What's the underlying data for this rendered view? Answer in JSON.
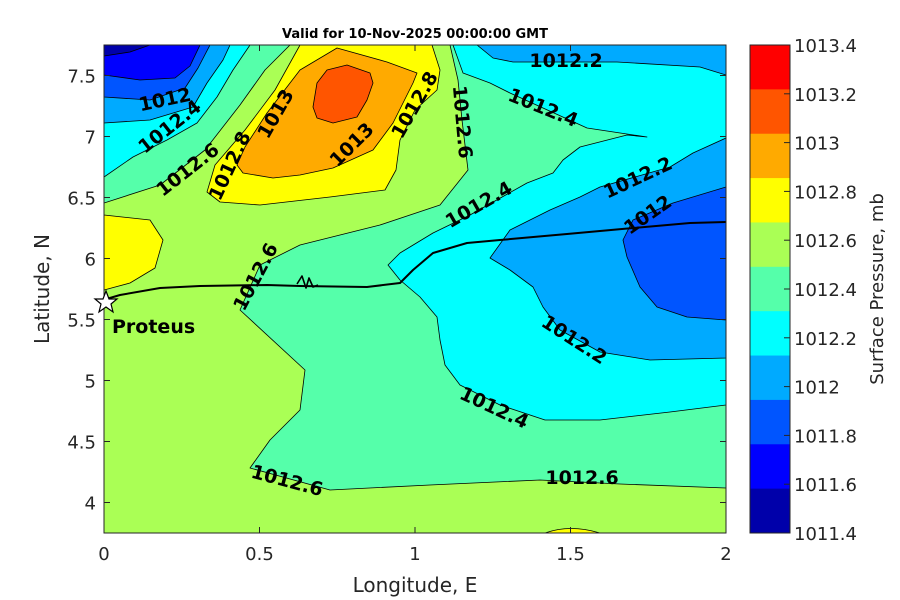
{
  "chart_data": {
    "type": "contour",
    "title": "Valid for 10-Nov-2025 00:00:00 GMT",
    "xlabel": "Longitude, E",
    "ylabel": "Latitude, N",
    "xlim": [
      0,
      2
    ],
    "ylim": [
      3.75,
      7.75
    ],
    "xticks": [
      "0",
      "0.5",
      "1",
      "1.5",
      "2"
    ],
    "xtick_values": [
      0,
      0.5,
      1,
      1.5,
      2
    ],
    "yticks": [
      "4",
      "4.5",
      "5",
      "5.5",
      "6",
      "6.5",
      "7",
      "7.5"
    ],
    "ytick_values": [
      4,
      4.5,
      5,
      5.5,
      6,
      6.5,
      7,
      7.5
    ],
    "colorbar": {
      "label": "Surface Pressure, mb",
      "range": [
        1011.4,
        1013.4
      ],
      "ticks": [
        "1013.4",
        "1013.2",
        "1013",
        "1012.8",
        "1012.6",
        "1012.4",
        "1012.2",
        "1012",
        "1011.8",
        "1011.6",
        "1011.4"
      ],
      "colors_top_to_bottom": [
        "#ff0000",
        "#ff5500",
        "#ffaa00",
        "#ffff00",
        "#aaff55",
        "#55ffaa",
        "#00ffff",
        "#00aaff",
        "#0055ff",
        "#0000ff",
        "#0000aa"
      ]
    },
    "contour_labels": [
      "1012",
      "1012.4",
      "1012.6",
      "1012.8",
      "1013",
      "1013",
      "1012.8",
      "1012.6",
      "1012.2",
      "1012.4",
      "1012.4",
      "1012.2",
      "1012",
      "1012.6",
      "1012.2",
      "1012.4",
      "1012.6",
      "1012.6"
    ],
    "marker": {
      "name": "Proteus",
      "lon": 0.01,
      "lat": 5.65,
      "symbol": "star"
    }
  }
}
